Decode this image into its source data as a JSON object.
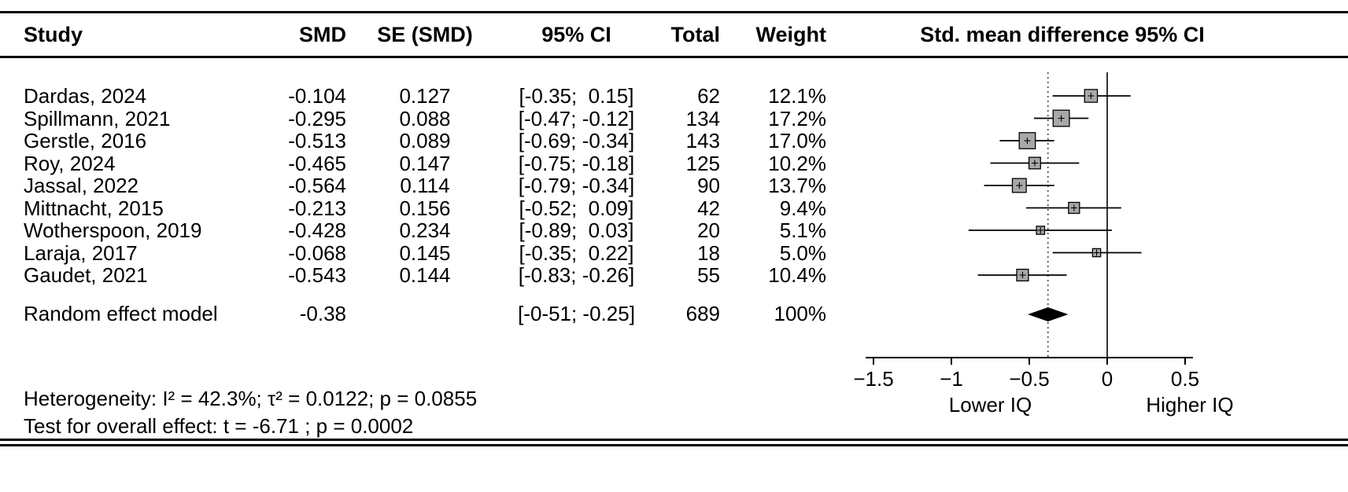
{
  "header": {
    "study": "Study",
    "smd": "SMD",
    "se": "SE (SMD)",
    "ci": "95% CI",
    "total": "Total",
    "weight": "Weight",
    "plot": "Std. mean difference 95% CI"
  },
  "rows": [
    {
      "study": "Dardas, 2024",
      "smd": "-0.104",
      "se": "0.127",
      "ci": "[-0.35;  0.15]",
      "total": "62",
      "weight": "12.1%"
    },
    {
      "study": "Spillmann, 2021",
      "smd": "-0.295",
      "se": "0.088",
      "ci": "[-0.47; -0.12]",
      "total": "134",
      "weight": "17.2%"
    },
    {
      "study": "Gerstle, 2016",
      "smd": "-0.513",
      "se": "0.089",
      "ci": "[-0.69; -0.34]",
      "total": "143",
      "weight": "17.0%"
    },
    {
      "study": "Roy, 2024",
      "smd": "-0.465",
      "se": "0.147",
      "ci": "[-0.75; -0.18]",
      "total": "125",
      "weight": "10.2%"
    },
    {
      "study": "Jassal, 2022",
      "smd": "-0.564",
      "se": "0.114",
      "ci": "[-0.79; -0.34]",
      "total": "90",
      "weight": "13.7%"
    },
    {
      "study": "Mittnacht, 2015",
      "smd": "-0.213",
      "se": "0.156",
      "ci": "[-0.52;  0.09]",
      "total": "42",
      "weight": "9.4%"
    },
    {
      "study": "Wotherspoon, 2019",
      "smd": "-0.428",
      "se": "0.234",
      "ci": "[-0.89;  0.03]",
      "total": "20",
      "weight": "5.1%"
    },
    {
      "study": "Laraja, 2017",
      "smd": "-0.068",
      "se": "0.145",
      "ci": "[-0.35;  0.22]",
      "total": "18",
      "weight": "5.0%"
    },
    {
      "study": "Gaudet, 2021",
      "smd": "-0.543",
      "se": "0.144",
      "ci": "[-0.83; -0.26]",
      "total": "55",
      "weight": "10.4%"
    }
  ],
  "summary_row": {
    "study": "Random effect model",
    "smd": "-0.38",
    "se": "",
    "ci": "[-0-51; -0.25]",
    "total": "689",
    "weight": "100%"
  },
  "footnotes": {
    "heterogeneity": "Heterogeneity: I² = 42.3%; τ² = 0.0122; p = 0.0855",
    "overall_effect": "Test for overall effect: t = -6.71 ; p = 0.0002"
  },
  "chart_data": {
    "type": "forest",
    "title": "Std. mean difference 95% CI",
    "studies": [
      "Dardas, 2024",
      "Spillmann, 2021",
      "Gerstle, 2016",
      "Roy, 2024",
      "Jassal, 2022",
      "Mittnacht, 2015",
      "Wotherspoon, 2019",
      "Laraja, 2017",
      "Gaudet, 2021"
    ],
    "estimates": [
      -0.104,
      -0.295,
      -0.513,
      -0.465,
      -0.564,
      -0.213,
      -0.428,
      -0.068,
      -0.543
    ],
    "ci_low": [
      -0.35,
      -0.47,
      -0.69,
      -0.75,
      -0.79,
      -0.52,
      -0.89,
      -0.35,
      -0.83
    ],
    "ci_high": [
      0.15,
      -0.12,
      -0.34,
      -0.18,
      -0.34,
      0.09,
      0.03,
      0.22,
      -0.26
    ],
    "weights_pct": [
      12.1,
      17.2,
      17.0,
      10.2,
      13.7,
      9.4,
      5.1,
      5.0,
      10.4
    ],
    "totals": [
      62,
      134,
      143,
      125,
      90,
      42,
      20,
      18,
      55
    ],
    "summary": {
      "label": "Random effect model",
      "estimate": -0.38,
      "ci_low": -0.51,
      "ci_high": -0.25,
      "weight_pct": 100,
      "total": 689
    },
    "reference_line": 0,
    "pooled_line": -0.38,
    "x_axis": {
      "min": -1.5,
      "max": 0.5,
      "ticks": [
        -1.5,
        -1,
        -0.5,
        0,
        0.5
      ],
      "tick_labels": [
        "−1.5",
        "−1",
        "−0.5",
        "0",
        "0.5"
      ],
      "label_left": "Lower IQ",
      "label_right": "Higher IQ"
    },
    "marker_color": "#a8a8a8"
  }
}
